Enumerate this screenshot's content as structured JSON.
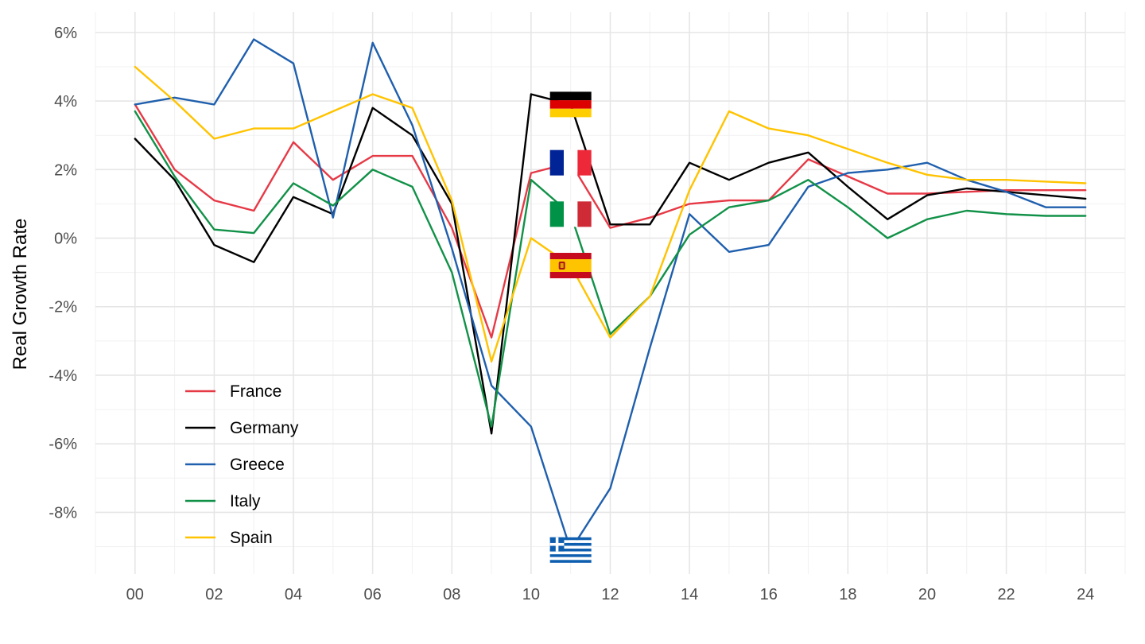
{
  "chart_data": {
    "type": "line",
    "title": "",
    "xlabel": "",
    "ylabel": "Real Growth Rate",
    "x": [
      2000,
      2001,
      2002,
      2003,
      2004,
      2005,
      2006,
      2007,
      2008,
      2009,
      2010,
      2011,
      2012,
      2013,
      2014,
      2015,
      2016,
      2017,
      2018,
      2019,
      2020,
      2021,
      2022,
      2023,
      2024
    ],
    "xlim": [
      1999,
      2025
    ],
    "ylim": [
      -9.8,
      6.6
    ],
    "x_ticks": [
      2000,
      2002,
      2004,
      2006,
      2008,
      2010,
      2012,
      2014,
      2016,
      2018,
      2020,
      2022,
      2024
    ],
    "x_tick_labels": [
      "00",
      "02",
      "04",
      "06",
      "08",
      "10",
      "12",
      "14",
      "16",
      "18",
      "20",
      "22",
      "24"
    ],
    "y_ticks": [
      6,
      4,
      2,
      0,
      -2,
      -4,
      -6,
      -8
    ],
    "y_tick_labels": [
      "6%",
      "4%",
      "2%",
      "0%",
      "-2%",
      "-4%",
      "-6%",
      "-8%"
    ],
    "grid": true,
    "legend_position": "bottom-left",
    "series": [
      {
        "name": "France",
        "color": "#E63946",
        "flag": "france-flag",
        "values": [
          3.9,
          2.0,
          1.1,
          0.8,
          2.8,
          1.7,
          2.4,
          2.4,
          0.3,
          -2.9,
          1.9,
          2.2,
          0.3,
          0.6,
          1.0,
          1.1,
          1.1,
          2.3,
          1.8,
          1.3,
          1.3,
          1.35,
          1.4,
          1.4,
          1.4
        ]
      },
      {
        "name": "Germany",
        "color": "#000000",
        "flag": "germany-flag",
        "values": [
          2.9,
          1.7,
          -0.2,
          -0.7,
          1.2,
          0.7,
          3.8,
          3.0,
          1.0,
          -5.7,
          4.2,
          3.9,
          0.4,
          0.4,
          2.2,
          1.7,
          2.2,
          2.5,
          1.5,
          0.55,
          1.25,
          1.45,
          1.35,
          1.25,
          1.15
        ]
      },
      {
        "name": "Greece",
        "color": "#1F5FAD",
        "flag": "greece-flag",
        "values": [
          3.9,
          4.1,
          3.9,
          5.8,
          5.1,
          0.6,
          5.7,
          3.3,
          -0.3,
          -4.3,
          -5.5,
          -9.1,
          -7.3,
          -3.2,
          0.7,
          -0.4,
          -0.2,
          1.5,
          1.9,
          2.0,
          2.2,
          1.7,
          1.35,
          0.9,
          0.9
        ]
      },
      {
        "name": "Italy",
        "color": "#119148",
        "flag": "italy-flag",
        "values": [
          3.7,
          1.8,
          0.25,
          0.15,
          1.6,
          0.95,
          2.0,
          1.5,
          -1.0,
          -5.5,
          1.7,
          0.7,
          -2.8,
          -1.7,
          0.1,
          0.9,
          1.1,
          1.7,
          0.9,
          0.0,
          0.55,
          0.8,
          0.7,
          0.65,
          0.65
        ]
      },
      {
        "name": "Spain",
        "color": "#FFC300",
        "flag": "spain-flag",
        "values": [
          5.0,
          4.0,
          2.9,
          3.2,
          3.2,
          3.7,
          4.2,
          3.8,
          1.1,
          -3.6,
          0.0,
          -0.8,
          -2.9,
          -1.7,
          1.4,
          3.7,
          3.2,
          3.0,
          2.6,
          2.2,
          1.85,
          1.7,
          1.7,
          1.65,
          1.6
        ]
      }
    ]
  }
}
